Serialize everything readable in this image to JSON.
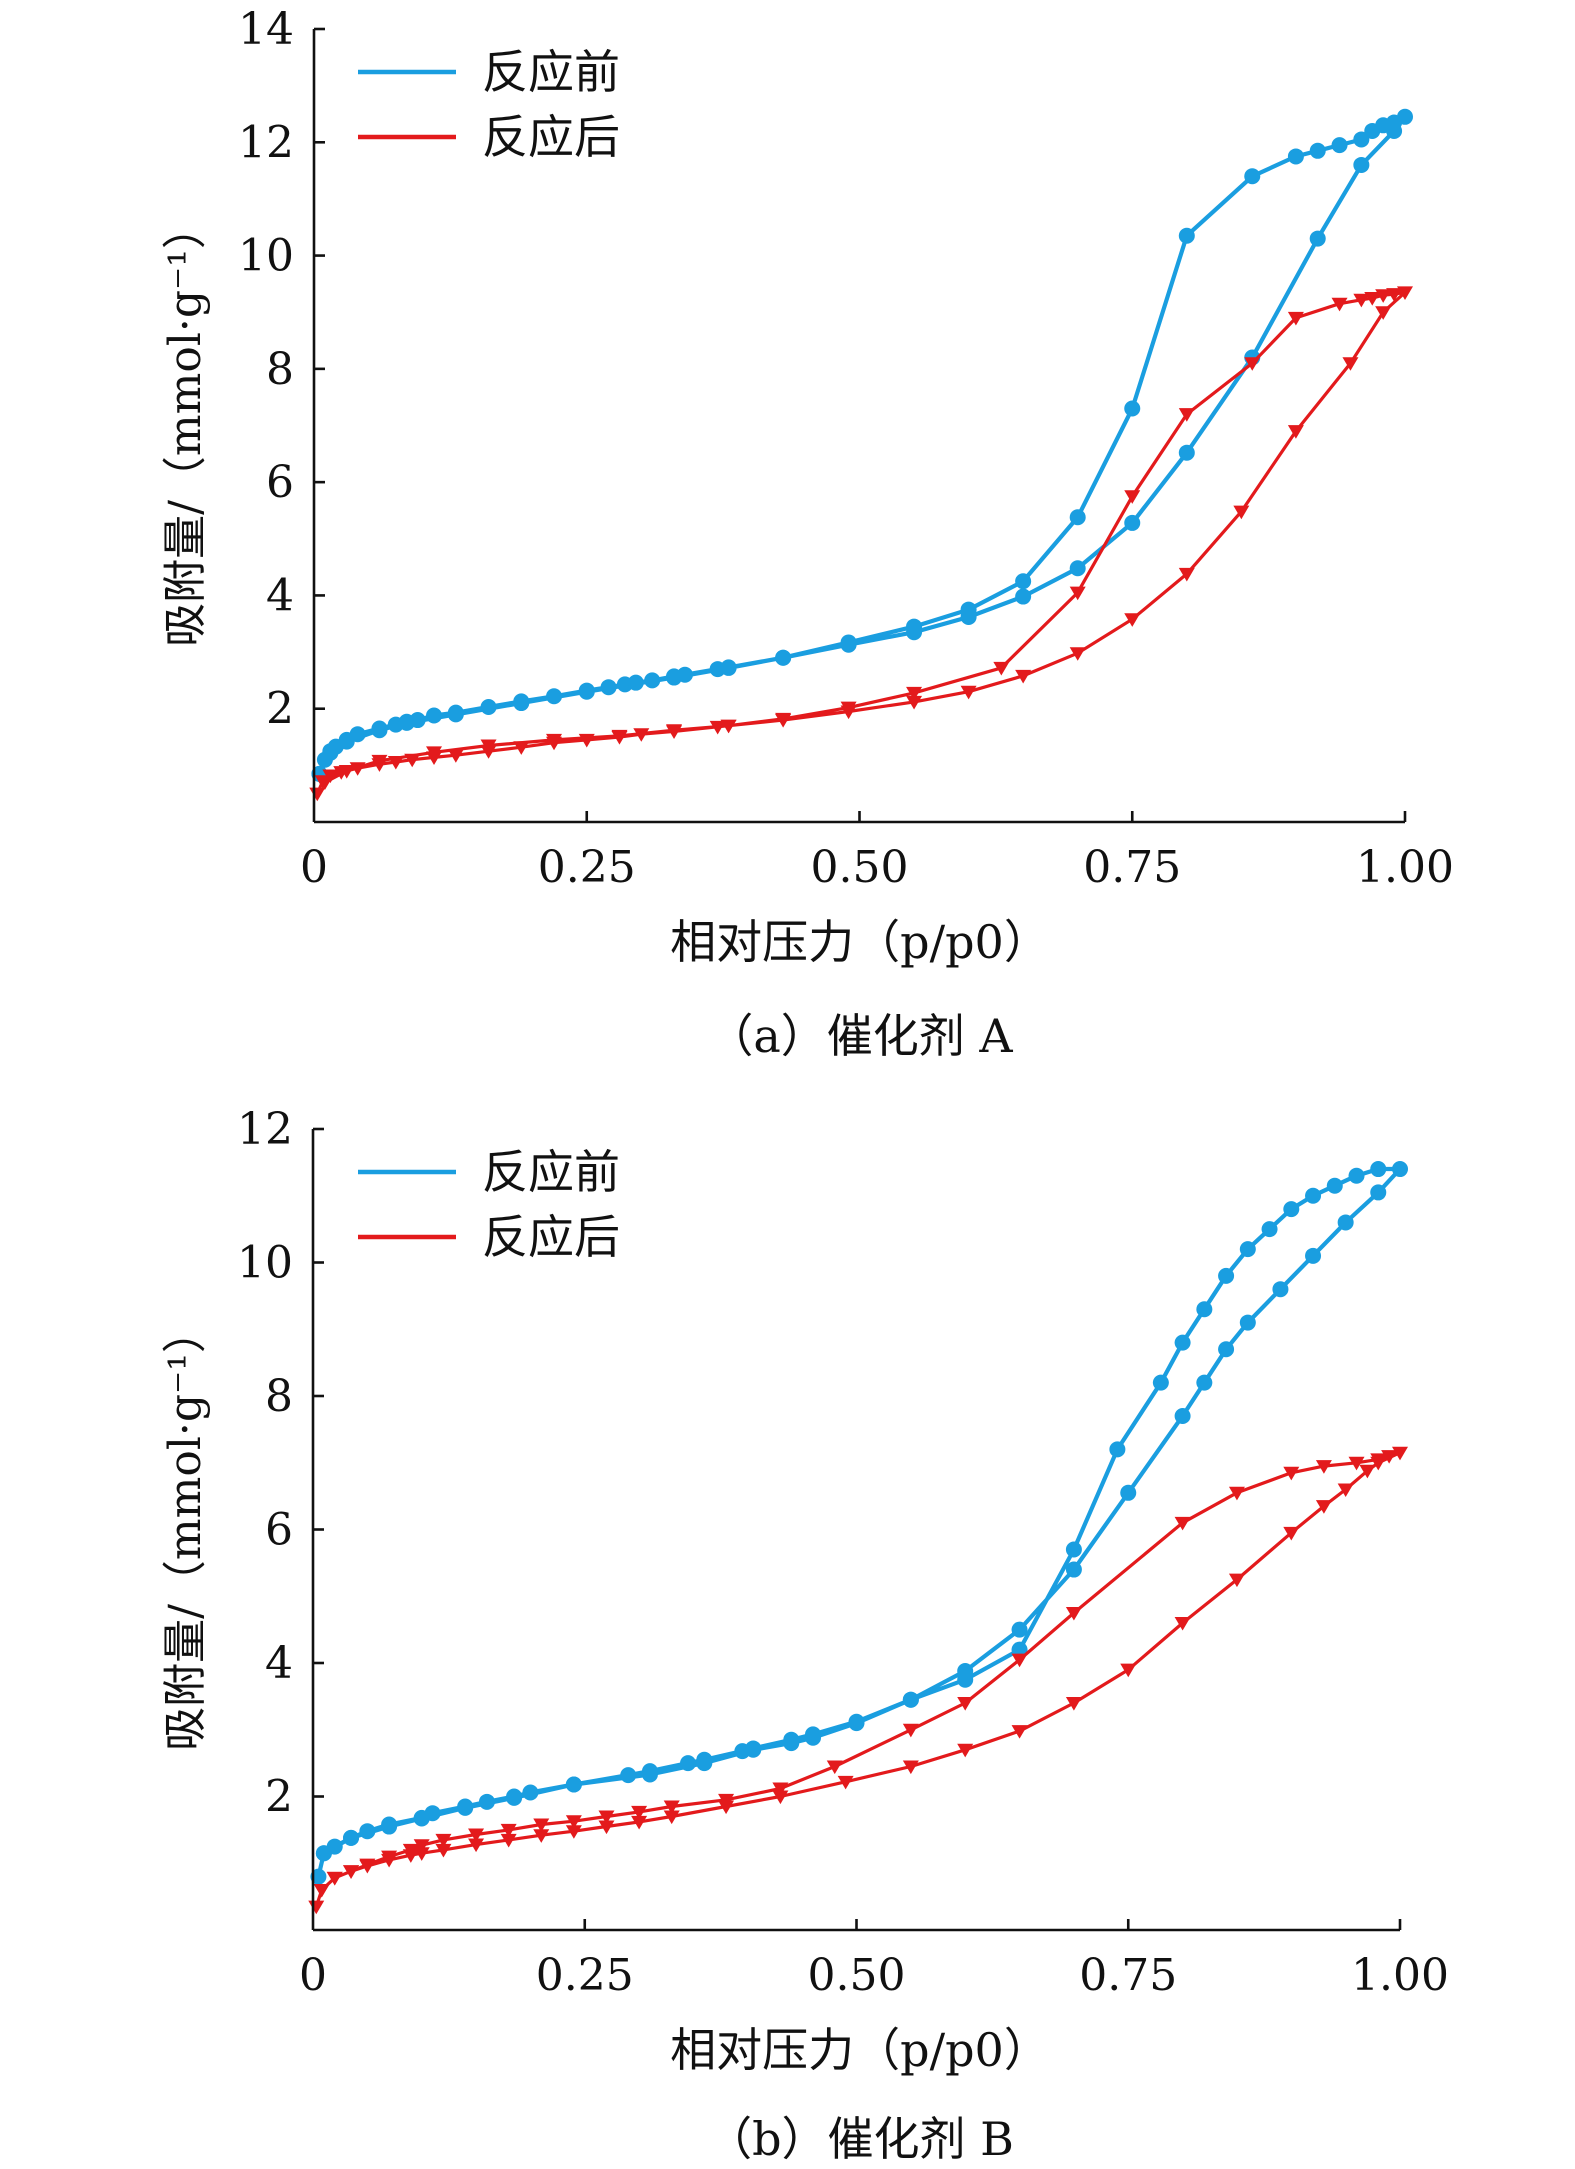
{
  "chart_data": [
    {
      "type": "line",
      "title": "（a）催化剂 A",
      "xlabel": "相对压力（p/p0）",
      "ylabel": "吸附量/（mmol·g⁻¹）",
      "xlim": [
        0,
        1.0
      ],
      "ylim": [
        0,
        14
      ],
      "xticks": [
        0,
        0.25,
        0.5,
        0.75,
        1.0
      ],
      "xtick_labels": [
        "0",
        "0.25",
        "0.50",
        "0.75",
        "1.00"
      ],
      "yticks": [
        2,
        4,
        6,
        8,
        10,
        12,
        14
      ],
      "ytick_labels": [
        "2",
        "4",
        "6",
        "8",
        "10",
        "12",
        "14"
      ],
      "legend_position": "top-left",
      "grid": false,
      "series": [
        {
          "name": "反应前",
          "color": "#1a9ee0",
          "marker": "circle",
          "x": [
            0.005,
            0.01,
            0.015,
            0.02,
            0.03,
            0.04,
            0.06,
            0.075,
            0.085,
            0.095,
            0.11,
            0.13,
            0.16,
            0.19,
            0.22,
            0.25,
            0.27,
            0.285,
            0.295,
            0.31,
            0.33,
            0.34,
            0.37,
            0.38,
            0.43,
            0.49,
            0.55,
            0.6,
            0.65,
            0.7,
            0.75,
            0.8,
            0.86,
            0.92,
            0.96,
            0.99,
            1.0,
            0.99,
            0.98,
            0.97,
            0.96,
            0.94,
            0.92,
            0.9,
            0.86,
            0.8,
            0.75,
            0.7,
            0.65,
            0.6,
            0.55,
            0.49,
            0.43,
            0.38,
            0.33,
            0.25,
            0.19,
            0.13,
            0.085,
            0.06,
            0.03,
            0.015,
            0.005
          ],
          "y": [
            0.85,
            1.1,
            1.25,
            1.33,
            1.45,
            1.55,
            1.65,
            1.72,
            1.77,
            1.8,
            1.88,
            1.93,
            2.03,
            2.13,
            2.22,
            2.32,
            2.38,
            2.43,
            2.46,
            2.5,
            2.57,
            2.6,
            2.7,
            2.73,
            2.9,
            3.13,
            3.35,
            3.62,
            3.98,
            4.48,
            5.28,
            6.52,
            8.2,
            10.3,
            11.6,
            12.2,
            12.45,
            12.35,
            12.3,
            12.2,
            12.05,
            11.95,
            11.85,
            11.75,
            11.4,
            10.35,
            7.3,
            5.38,
            4.25,
            3.75,
            3.45,
            3.17,
            2.9,
            2.72,
            2.55,
            2.3,
            2.1,
            1.9,
            1.75,
            1.62,
            1.42,
            1.22,
            0.85
          ]
        },
        {
          "name": "反应后",
          "color": "#e31a1c",
          "marker": "triangle-down",
          "x": [
            0.003,
            0.008,
            0.015,
            0.025,
            0.04,
            0.06,
            0.075,
            0.09,
            0.11,
            0.13,
            0.16,
            0.19,
            0.22,
            0.25,
            0.28,
            0.3,
            0.33,
            0.37,
            0.38,
            0.43,
            0.49,
            0.55,
            0.6,
            0.65,
            0.7,
            0.75,
            0.8,
            0.85,
            0.9,
            0.95,
            0.98,
            1.0,
            0.99,
            0.98,
            0.97,
            0.96,
            0.94,
            0.9,
            0.86,
            0.8,
            0.75,
            0.7,
            0.63,
            0.55,
            0.49,
            0.43,
            0.38,
            0.33,
            0.28,
            0.22,
            0.16,
            0.11,
            0.06,
            0.03,
            0.01
          ],
          "y": [
            0.5,
            0.72,
            0.82,
            0.88,
            0.95,
            1.02,
            1.06,
            1.1,
            1.14,
            1.18,
            1.25,
            1.32,
            1.4,
            1.45,
            1.5,
            1.55,
            1.6,
            1.68,
            1.7,
            1.8,
            1.95,
            2.12,
            2.3,
            2.58,
            2.98,
            3.58,
            4.38,
            5.48,
            6.9,
            8.1,
            9.0,
            9.35,
            9.32,
            9.3,
            9.25,
            9.22,
            9.15,
            8.9,
            8.1,
            7.2,
            5.75,
            4.05,
            2.72,
            2.28,
            2.02,
            1.82,
            1.7,
            1.62,
            1.52,
            1.45,
            1.35,
            1.23,
            1.08,
            0.9,
            0.7
          ]
        }
      ]
    },
    {
      "type": "line",
      "title": "（b）催化剂 B",
      "xlabel": "相对压力（p/p0）",
      "ylabel": "吸附量/（mmol·g⁻¹）",
      "xlim": [
        0,
        1.0
      ],
      "ylim": [
        0,
        12
      ],
      "xticks": [
        0,
        0.25,
        0.5,
        0.75,
        1.0
      ],
      "xtick_labels": [
        "0",
        "0.25",
        "0.50",
        "0.75",
        "1.00"
      ],
      "yticks": [
        2,
        4,
        6,
        8,
        10,
        12
      ],
      "ytick_labels": [
        "2",
        "4",
        "6",
        "8",
        "10",
        "12"
      ],
      "legend_position": "top-left",
      "grid": false,
      "series": [
        {
          "name": "反应前",
          "color": "#1a9ee0",
          "marker": "circle",
          "x": [
            0.005,
            0.01,
            0.02,
            0.035,
            0.05,
            0.07,
            0.1,
            0.11,
            0.14,
            0.16,
            0.185,
            0.2,
            0.24,
            0.29,
            0.31,
            0.345,
            0.36,
            0.395,
            0.405,
            0.44,
            0.46,
            0.5,
            0.55,
            0.6,
            0.65,
            0.7,
            0.75,
            0.8,
            0.82,
            0.84,
            0.86,
            0.89,
            0.92,
            0.95,
            0.98,
            1.0,
            0.98,
            0.96,
            0.94,
            0.92,
            0.9,
            0.88,
            0.86,
            0.84,
            0.82,
            0.8,
            0.78,
            0.74,
            0.7,
            0.65,
            0.6,
            0.55,
            0.5,
            0.46,
            0.44,
            0.405,
            0.36,
            0.31,
            0.24,
            0.185,
            0.14,
            0.1,
            0.07,
            0.035,
            0.01
          ],
          "y": [
            0.8,
            1.15,
            1.25,
            1.38,
            1.48,
            1.58,
            1.68,
            1.75,
            1.85,
            1.92,
            2.0,
            2.06,
            2.18,
            2.32,
            2.38,
            2.5,
            2.55,
            2.68,
            2.72,
            2.85,
            2.93,
            3.12,
            3.45,
            3.88,
            4.5,
            5.4,
            6.55,
            7.7,
            8.2,
            8.7,
            9.1,
            9.6,
            10.1,
            10.6,
            11.05,
            11.4,
            11.4,
            11.3,
            11.15,
            11.0,
            10.8,
            10.5,
            10.2,
            9.8,
            9.3,
            8.8,
            8.2,
            7.2,
            5.7,
            4.2,
            3.75,
            3.45,
            3.1,
            2.88,
            2.8,
            2.7,
            2.5,
            2.33,
            2.18,
            1.98,
            1.83,
            1.67,
            1.55,
            1.38,
            1.15
          ]
        },
        {
          "name": "反应后",
          "color": "#e31a1c",
          "marker": "triangle-down",
          "x": [
            0.003,
            0.008,
            0.02,
            0.035,
            0.05,
            0.07,
            0.09,
            0.1,
            0.12,
            0.15,
            0.18,
            0.21,
            0.24,
            0.27,
            0.3,
            0.33,
            0.38,
            0.43,
            0.49,
            0.55,
            0.6,
            0.65,
            0.7,
            0.75,
            0.8,
            0.85,
            0.9,
            0.93,
            0.95,
            0.97,
            0.98,
            1.0,
            0.99,
            0.98,
            0.96,
            0.93,
            0.9,
            0.85,
            0.8,
            0.7,
            0.65,
            0.6,
            0.55,
            0.48,
            0.43,
            0.38,
            0.33,
            0.3,
            0.27,
            0.24,
            0.21,
            0.18,
            0.15,
            0.12,
            0.1,
            0.09,
            0.07,
            0.05,
            0.035,
            0.02,
            0.008
          ],
          "y": [
            0.35,
            0.6,
            0.78,
            0.88,
            0.96,
            1.05,
            1.12,
            1.15,
            1.2,
            1.28,
            1.35,
            1.42,
            1.48,
            1.55,
            1.62,
            1.7,
            1.85,
            2.0,
            2.22,
            2.45,
            2.7,
            2.98,
            3.4,
            3.9,
            4.6,
            5.25,
            5.95,
            6.35,
            6.6,
            6.88,
            7.0,
            7.15,
            7.1,
            7.05,
            7.0,
            6.95,
            6.85,
            6.55,
            6.1,
            4.75,
            4.05,
            3.4,
            3.0,
            2.45,
            2.12,
            1.95,
            1.85,
            1.77,
            1.7,
            1.63,
            1.58,
            1.5,
            1.43,
            1.35,
            1.27,
            1.2,
            1.1,
            0.98,
            0.88,
            0.78,
            0.6
          ]
        }
      ]
    }
  ]
}
